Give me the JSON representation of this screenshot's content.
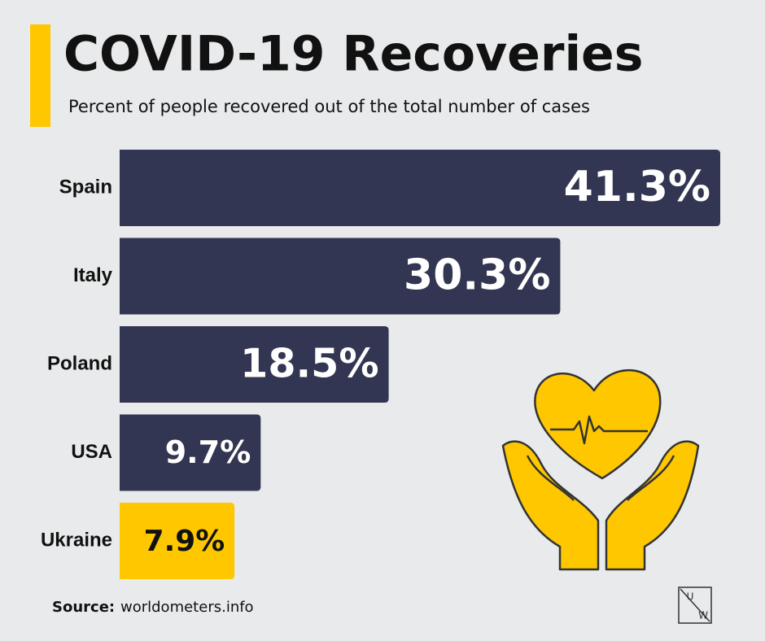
{
  "chart_data": {
    "type": "hbar",
    "title": "COVID-19 Recoveries",
    "subtitle": "Percent of people recovered out of the total number of cases",
    "categories": [
      "Spain",
      "Italy",
      "Poland",
      "USA",
      "Ukraine"
    ],
    "values": [
      41.3,
      30.3,
      18.5,
      9.7,
      7.9
    ],
    "value_labels": [
      "41.3%",
      "30.3%",
      "18.5%",
      "9.7%",
      "7.9%"
    ],
    "colors": [
      "#333652",
      "#333652",
      "#333652",
      "#333652",
      "#ffc700"
    ],
    "label_colors": [
      "#ffffff",
      "#ffffff",
      "#ffffff",
      "#ffffff",
      "#111111"
    ],
    "xlim": [
      0,
      41.3
    ],
    "source_label": "Source:",
    "source": "worldometers.info"
  },
  "logo": {
    "top": "U",
    "bottom": "W"
  }
}
